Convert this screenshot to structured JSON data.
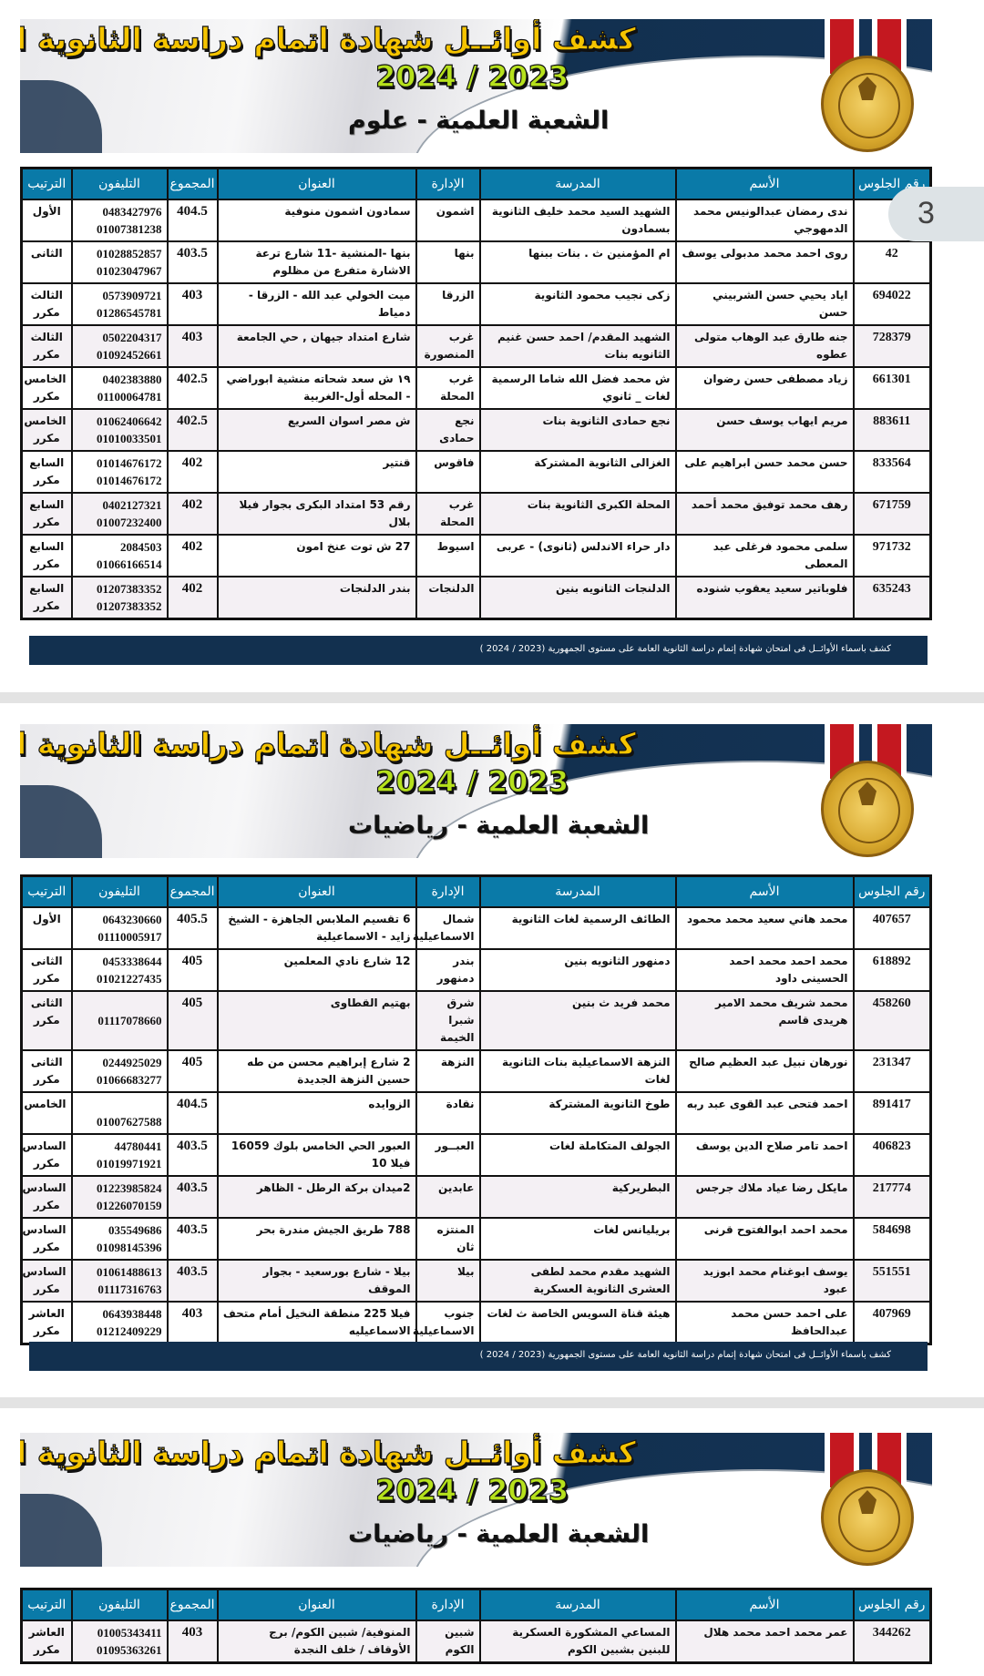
{
  "banner": {
    "title": "كشف أوائــل شهادة اتمام دراسة الثانوية العامة",
    "year": "2024 / 2023",
    "logo_text": "MINISTRY OF EDUCATION AND TECHNICAL EDUCATION - وزارة التربية والتعليم والتعليم الفني"
  },
  "columns": [
    "رقم الجلوس",
    "الأسم",
    "المدرسة",
    "الإدارة",
    "العنوان",
    "المجموع",
    "التليفون",
    "الترتيب"
  ],
  "footer_text": "كشف باسماء الأوائــل فى امتحان شهادة إتمام دراسة الثانوية العامة على مستوى الجمهورية (2023 / 2024 )",
  "page_badge": "3",
  "colors": {
    "header": "#0a7aa8",
    "banner_dark": "#143356",
    "title": "#f5c400",
    "year": "#b6e11c",
    "footer": "#12304f"
  },
  "sections": [
    {
      "subtitle": "الشعبة العلمية - علوم",
      "rows": [
        {
          "seat": "3",
          "name": "ندى رمضان عبدالونيس محمد الدمهوجي",
          "school": "الشهيد السيد محمد خليف الثانوية بسمادون",
          "admin": "اشمون",
          "address": "سمادون اشمون منوفية",
          "total": "404.5",
          "phone": "0483427976\n01007381238",
          "rank": "الأول"
        },
        {
          "seat": "42",
          "name": "روى احمد محمد مدبولى يوسف",
          "school": "ام المؤمنين ث . بنات ببنها",
          "admin": "بنها",
          "address": "بنها -المنشية -11 شارع ترعة الاشارة متفرع من مظلوم",
          "total": "403.5",
          "phone": "01028852857\n01023047967",
          "rank": "الثانى"
        },
        {
          "seat": "694022",
          "name": "اياد يحيي حسن الشربيني حسن",
          "school": "زكى نجيب محمود الثانوية",
          "admin": "الزرقا",
          "address": "ميت الخولي عبد الله - الزرقا - دمياط",
          "total": "403",
          "phone": "0573909721\n01286545781",
          "rank": "الثالث\nمكرر"
        },
        {
          "seat": "728379",
          "name": "جنه طارق عبد الوهاب متولى عطوه",
          "school": "الشهيد المقدم/ احمد حسن غنيم الثانويه بنات",
          "admin": "غرب المنصورة",
          "address": "شارع امتداد جيهان , حي الجامعة",
          "total": "403",
          "phone": "0502204317\n01092452661",
          "rank": "الثالث\nمكرر"
        },
        {
          "seat": "661301",
          "name": "زياد مصطفى حسن رضوان",
          "school": "ش محمد فضل الله شاما الرسمية لغات _ ثانوي",
          "admin": "غرب المحلة",
          "address": "١٩ ش سعد شحاته منشية ابوراضي - المحله أول-الغربية",
          "total": "402.5",
          "phone": "0402383880\n01100064781",
          "rank": "الخامس\nمكرر"
        },
        {
          "seat": "883611",
          "name": "مريم ايهاب يوسف حسن",
          "school": "نجع حمادى الثانوية بنات",
          "admin": "نجع حمادى",
          "address": "ش مصر اسوان السريع",
          "total": "402.5",
          "phone": "01062406642\n01010033501",
          "rank": "الخامس\nمكرر"
        },
        {
          "seat": "833564",
          "name": "حسن محمد حسن ابراهيم على",
          "school": "الغزالى الثانوية المشتركة",
          "admin": "فاقوس",
          "address": "قنتير",
          "total": "402",
          "phone": "01014676172\n01014676172",
          "rank": "السابع\nمكرر"
        },
        {
          "seat": "671759",
          "name": "رهف محمد توفيق محمد أحمد",
          "school": "المحلة الكبرى الثانوية بنات",
          "admin": "غرب المحلة",
          "address": "رقم 53 امتداد البكرى بجوار فيلا بلال",
          "total": "402",
          "phone": "0402127321\n01007232400",
          "rank": "السابع\nمكرر"
        },
        {
          "seat": "971732",
          "name": "سلمى محمود فرغلى عبد المعطى",
          "school": "دار حراء الاندلس (ثانوى) - عربى",
          "admin": "اسيوط",
          "address": "27 ش توت عنخ امون",
          "total": "402",
          "phone": "2084503\n01066166514",
          "rank": "السابع\nمكرر"
        },
        {
          "seat": "635243",
          "name": "فلوباتير سعيد يعقوب شنوده",
          "school": "الدلنجات الثانويه بنين",
          "admin": "الدلنجات",
          "address": "بندر الدلنجات",
          "total": "402",
          "phone": "01207383352\n01207383352",
          "rank": "السابع\nمكرر"
        }
      ]
    },
    {
      "subtitle": "الشعبة العلمية - رياضيات",
      "rows": [
        {
          "seat": "407657",
          "name": "محمد هاني سعيد محمد محمود",
          "school": "الطائف الرسمية لغات الثانوية",
          "admin": "شمال الاسماعيلية",
          "address": "6 تقسيم الملابس الجاهزة - الشيخ زايد - الاسماعيلية",
          "total": "405.5",
          "phone": "0643230660\n01110005917",
          "rank": "الأول"
        },
        {
          "seat": "618892",
          "name": "محمد احمد محمد احمد الحسينى داود",
          "school": "دمنهور الثانويه بنين",
          "admin": "بندر دمنهور",
          "address": "12 شارع نادي المعلمين",
          "total": "405",
          "phone": "0453338644\n01021227435",
          "rank": "الثانى\nمكرر"
        },
        {
          "seat": "458260",
          "name": "محمد شريف محمد الامير هريدى قاسم",
          "school": "محمد فريد ث بنين",
          "admin": "شرق شبرا الخيمة",
          "address": "بهتيم القطاوى",
          "total": "405",
          "phone": "\n01117078660",
          "rank": "الثانى\nمكرر"
        },
        {
          "seat": "231347",
          "name": "نورهان نبيل عبد العظيم صالح",
          "school": "النزهة الاسماعيلية بنات الثانوية لغات",
          "admin": "النزهة",
          "address": "2 شارع إبراهيم محسن من طه حسين النزهة الجديدة",
          "total": "405",
          "phone": "0244925029\n01066683277",
          "rank": "الثانى\nمكرر"
        },
        {
          "seat": "891417",
          "name": "احمد فتحى عبد القوى عبد ربه",
          "school": "طوخ الثانوية المشتركة",
          "admin": "نقادة",
          "address": "الزوايده",
          "total": "404.5",
          "phone": "\n01007627588",
          "rank": "الخامس"
        },
        {
          "seat": "406823",
          "name": "احمد تامر صلاح الدين يوسف",
          "school": "الجولف المتكاملة لغات",
          "admin": "العبــور",
          "address": "العبور الحي الخامس بلوك 16059 فيلا 10",
          "total": "403.5",
          "phone": "44780441\n01019971921",
          "rank": "السادس\nمكرر"
        },
        {
          "seat": "217774",
          "name": "مايكل رضا عياد ملاك جرجس",
          "school": "البطريركية",
          "admin": "عابدين",
          "address": "2ميدان بركة الرطل - الظاهر",
          "total": "403.5",
          "phone": "01223985824\n01226070159",
          "rank": "السادس\nمكرر"
        },
        {
          "seat": "584698",
          "name": "محمد احمد ابوالفتوح قرنى",
          "school": "بريليانس لغات",
          "admin": "المنتزه ثان",
          "address": "788 طريق الجيش مندرة بحر",
          "total": "403.5",
          "phone": "035549686\n01098145396",
          "rank": "السادس\nمكرر"
        },
        {
          "seat": "551551",
          "name": "يوسف ابوغنام محمد ابوزيد عبود",
          "school": "الشهيد مقدم محمد لطفى العشرى الثانوية العسكرية",
          "admin": "بيلا",
          "address": "بيلا - شارع بورسعيد - بجوار الموقف",
          "total": "403.5",
          "phone": "01061488613\n01117316763",
          "rank": "السادس\nمكرر"
        },
        {
          "seat": "407969",
          "name": "على احمد حسن محمد عبدالحافظ",
          "school": "هيئة قناة السويس الخاصة ث لغات",
          "admin": "جنوب الاسماعيلية",
          "address": "فيلا 225 منطقة النخيل أمام متحف الاسماعيليه",
          "total": "403",
          "phone": "0643938448\n01212409229",
          "rank": "العاشر\nمكرر"
        }
      ]
    },
    {
      "subtitle": "الشعبة العلمية - رياضيات",
      "rows": [
        {
          "seat": "344262",
          "name": "عمر محمد احمد محمد هلال",
          "school": "المساعي المشكورة العسكرية للبنين بشبين الكوم",
          "admin": "شبين الكوم",
          "address": "المنوفية/ شبين الكوم/ برج الأوقاف / خلف النجدة",
          "total": "403",
          "phone": "01005343411\n01095363261",
          "rank": "العاشر\nمكرر"
        }
      ]
    }
  ]
}
